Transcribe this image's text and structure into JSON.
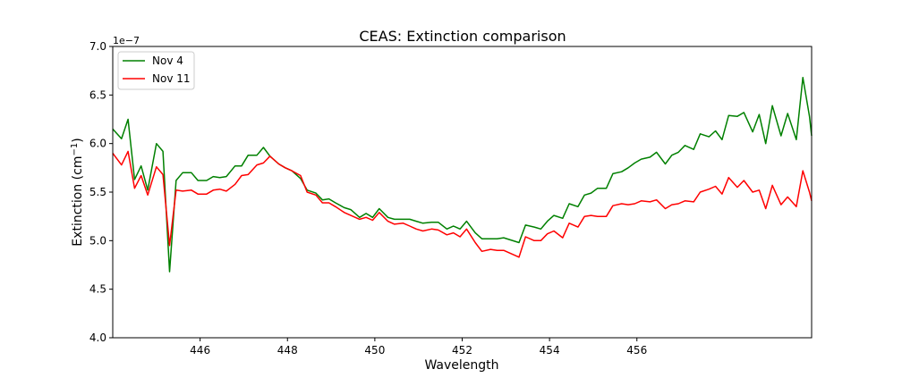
{
  "chart_data": {
    "type": "line",
    "title": "CEAS: Extinction comparison",
    "xlabel": "Wavelength",
    "ylabel_main": "Extinction (cm",
    "ylabel_sup": "−1",
    "ylabel_close": ")",
    "offset_label": "1e−7",
    "xlim": [
      444.0,
      460.0
    ],
    "ylim": [
      4.0,
      7.0
    ],
    "x_ticks": [
      446,
      448,
      450,
      452,
      454,
      456
    ],
    "y_ticks": [
      4.0,
      4.5,
      5.0,
      5.5,
      6.0,
      6.5,
      7.0
    ],
    "x_tick_labels": [
      "446",
      "448",
      "450",
      "452",
      "454",
      "456"
    ],
    "y_tick_labels": [
      "4.0",
      "4.5",
      "5.0",
      "5.5",
      "6.0",
      "6.5",
      "7.0"
    ],
    "legend_position": "top-left",
    "grid": false,
    "x": [
      444.0,
      444.2,
      444.35,
      444.5,
      444.65,
      444.8,
      445.0,
      445.15,
      445.3,
      445.45,
      445.6,
      445.8,
      445.95,
      446.15,
      446.3,
      446.45,
      446.6,
      446.8,
      446.95,
      447.1,
      447.3,
      447.45,
      447.6,
      447.8,
      447.95,
      448.1,
      448.3,
      448.45,
      448.65,
      448.8,
      448.95,
      449.1,
      449.3,
      449.45,
      449.65,
      449.8,
      449.95,
      450.1,
      450.3,
      450.45,
      450.65,
      450.8,
      450.95,
      451.1,
      451.3,
      451.45,
      451.65,
      451.8,
      451.95,
      452.1,
      452.3,
      452.45,
      452.65,
      452.8,
      452.95,
      453.3,
      453.45,
      453.65,
      453.8,
      453.95,
      454.1,
      454.3,
      454.45,
      454.65,
      454.8,
      454.95,
      455.1,
      455.3,
      455.45,
      455.65,
      455.8,
      455.95,
      456.1,
      456.3,
      456.45,
      456.65,
      456.8,
      456.95,
      457.1,
      457.3,
      457.45,
      457.65,
      457.8,
      457.95,
      458.1,
      458.3,
      458.45,
      458.65,
      458.8,
      458.95,
      459.1,
      459.3,
      459.45,
      459.65,
      459.8,
      459.95,
      460.0
    ],
    "series": [
      {
        "name": "Nov 4",
        "color": "#008000",
        "values": [
          6.15,
          6.05,
          6.25,
          5.63,
          5.77,
          5.52,
          6.0,
          5.92,
          4.68,
          5.62,
          5.7,
          5.7,
          5.62,
          5.62,
          5.66,
          5.65,
          5.66,
          5.77,
          5.77,
          5.88,
          5.88,
          5.96,
          5.87,
          5.79,
          5.75,
          5.72,
          5.64,
          5.52,
          5.49,
          5.42,
          5.43,
          5.39,
          5.34,
          5.32,
          5.24,
          5.28,
          5.24,
          5.33,
          5.24,
          5.22,
          5.22,
          5.22,
          5.2,
          5.18,
          5.19,
          5.19,
          5.12,
          5.15,
          5.12,
          5.2,
          5.08,
          5.02,
          5.02,
          5.02,
          5.03,
          4.98,
          5.16,
          5.14,
          5.12,
          5.2,
          5.26,
          5.23,
          5.38,
          5.35,
          5.47,
          5.49,
          5.54,
          5.54,
          5.69,
          5.71,
          5.75,
          5.8,
          5.84,
          5.86,
          5.91,
          5.79,
          5.88,
          5.91,
          5.98,
          5.94,
          6.1,
          6.07,
          6.13,
          6.04,
          6.29,
          6.28,
          6.32,
          6.12,
          6.3,
          6.0,
          6.39,
          6.08,
          6.31,
          6.04,
          6.68,
          6.28,
          6.08
        ]
      },
      {
        "name": "Nov 11",
        "color": "#ff0000",
        "values": [
          5.9,
          5.78,
          5.92,
          5.54,
          5.67,
          5.47,
          5.76,
          5.68,
          4.95,
          5.52,
          5.51,
          5.52,
          5.48,
          5.48,
          5.52,
          5.53,
          5.51,
          5.58,
          5.67,
          5.68,
          5.78,
          5.8,
          5.87,
          5.79,
          5.75,
          5.72,
          5.67,
          5.5,
          5.47,
          5.39,
          5.39,
          5.35,
          5.29,
          5.26,
          5.22,
          5.24,
          5.21,
          5.29,
          5.2,
          5.17,
          5.18,
          5.15,
          5.12,
          5.1,
          5.12,
          5.11,
          5.06,
          5.08,
          5.04,
          5.12,
          4.98,
          4.89,
          4.91,
          4.9,
          4.9,
          4.83,
          5.04,
          5.0,
          5.0,
          5.07,
          5.1,
          5.03,
          5.18,
          5.14,
          5.25,
          5.26,
          5.25,
          5.25,
          5.36,
          5.38,
          5.37,
          5.38,
          5.41,
          5.4,
          5.42,
          5.33,
          5.37,
          5.38,
          5.41,
          5.4,
          5.5,
          5.53,
          5.56,
          5.48,
          5.65,
          5.55,
          5.62,
          5.5,
          5.52,
          5.33,
          5.57,
          5.37,
          5.45,
          5.35,
          5.72,
          5.5,
          5.41
        ]
      }
    ]
  }
}
